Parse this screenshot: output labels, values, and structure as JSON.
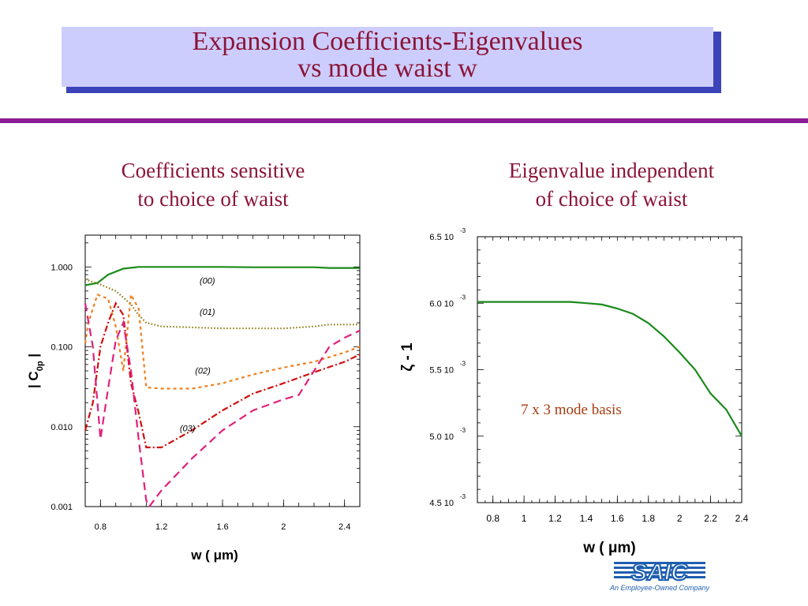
{
  "slide": {
    "title_line1": "Expansion Coefficients-Eigenvalues",
    "title_line2": "vs mode waist w",
    "left_heading_line1": "Coefficients sensitive",
    "left_heading_line2": "to choice of waist",
    "right_heading_line1": "Eigenvalue independent",
    "right_heading_line2": "of choice of waist",
    "logo_text": "SAIC",
    "logo_tagline": "An Employee-Owned Company"
  },
  "colors": {
    "title_text": "#8b1538",
    "title_box": "#cdcdfd",
    "title_shadow": "#3a44b8",
    "rule": "#8a1c96",
    "series_00": "#1a8a1a",
    "series_01": "#8a7a10",
    "series_02": "#f08020",
    "series_03a": "#d01010",
    "series_03b": "#e0207a",
    "eigen_line": "#1a8a1a"
  },
  "chart_data": [
    {
      "type": "line",
      "scale_y": "log",
      "xlabel": "w ( μm)",
      "ylabel_prefix": "| C",
      "ylabel_sub": "0p",
      "ylabel_suffix": "|",
      "xlim": [
        0.7,
        2.5
      ],
      "ylim": [
        0.001,
        2.5
      ],
      "xticks": [
        0.8,
        1.2,
        1.6,
        2,
        2.4
      ],
      "xtick_labels": [
        "0.8",
        "1.2",
        "1.6",
        "2",
        "2.4"
      ],
      "yticks": [
        0.001,
        0.01,
        0.1,
        1
      ],
      "ytick_labels": [
        "0.001",
        "0.010",
        "0.100",
        "1.000"
      ],
      "annotations": [
        {
          "text": "(00)",
          "x": 1.45,
          "y": 0.62
        },
        {
          "text": "(01)",
          "x": 1.45,
          "y": 0.25
        },
        {
          "text": "(02)",
          "x": 1.42,
          "y": 0.046
        },
        {
          "text": "(03)",
          "x": 1.32,
          "y": 0.0088
        }
      ],
      "series": [
        {
          "key": "00",
          "dash": "",
          "color_key": "series_00",
          "x": [
            0.7,
            0.78,
            0.85,
            0.95,
            1.05,
            1.2,
            1.4,
            1.6,
            1.8,
            2.0,
            2.2,
            2.3,
            2.5
          ],
          "y": [
            0.59,
            0.63,
            0.8,
            0.95,
            1.0,
            1.0,
            1.0,
            1.0,
            0.99,
            0.99,
            0.99,
            0.97,
            0.97
          ]
        },
        {
          "key": "01",
          "dash": "1.5,2.5",
          "color_key": "series_01",
          "x": [
            0.7,
            0.8,
            0.9,
            1.0,
            1.05,
            1.1,
            1.2,
            1.4,
            1.6,
            1.8,
            2.0,
            2.2,
            2.3,
            2.5
          ],
          "y": [
            0.7,
            0.6,
            0.5,
            0.34,
            0.25,
            0.2,
            0.18,
            0.175,
            0.17,
            0.17,
            0.17,
            0.18,
            0.19,
            0.19
          ]
        },
        {
          "key": "02",
          "dash": "4,4",
          "color_key": "series_02",
          "x": [
            0.7,
            0.72,
            0.78,
            0.85,
            0.9,
            0.95,
            1.0,
            1.05,
            1.1,
            1.2,
            1.4,
            1.6,
            1.8,
            2.0,
            2.2,
            2.4,
            2.5
          ],
          "y": [
            0.11,
            0.2,
            0.45,
            0.4,
            0.18,
            0.05,
            0.45,
            0.3,
            0.031,
            0.03,
            0.03,
            0.035,
            0.045,
            0.055,
            0.065,
            0.085,
            0.1
          ]
        },
        {
          "key": "03a",
          "dash": "8,3,2,3",
          "color_key": "series_03a",
          "x": [
            0.7,
            0.75,
            0.8,
            0.85,
            0.9,
            0.95,
            1.0,
            1.05,
            1.1,
            1.2,
            1.4,
            1.6,
            1.8,
            2.0,
            2.2,
            2.4,
            2.5
          ],
          "y": [
            0.009,
            0.02,
            0.1,
            0.2,
            0.35,
            0.25,
            0.035,
            0.015,
            0.0055,
            0.0055,
            0.009,
            0.016,
            0.026,
            0.035,
            0.048,
            0.065,
            0.08
          ]
        },
        {
          "key": "03b",
          "dash": "10,6",
          "color_key": "series_03b",
          "x": [
            0.7,
            0.75,
            0.8,
            0.85,
            0.9,
            0.95,
            1.0,
            1.05,
            1.1,
            1.12,
            1.2,
            1.4,
            1.6,
            1.8,
            2.0,
            2.1,
            2.2,
            2.3,
            2.4,
            2.5
          ],
          "y": [
            0.35,
            0.1,
            0.007,
            0.03,
            0.12,
            0.2,
            0.05,
            0.007,
            0.0012,
            0.001,
            0.0016,
            0.004,
            0.009,
            0.016,
            0.022,
            0.025,
            0.05,
            0.1,
            0.13,
            0.16
          ]
        }
      ]
    },
    {
      "type": "line",
      "xlabel": "w  (  μm)",
      "ylabel": "ζ - 1",
      "annotation": "7 x 3 mode basis",
      "xlim": [
        0.7,
        2.4
      ],
      "ylim": [
        0.0045,
        0.0065
      ],
      "xticks": [
        0.8,
        1.0,
        1.2,
        1.4,
        1.6,
        1.8,
        2.0,
        2.2,
        2.4
      ],
      "xtick_labels": [
        "0.8",
        "1",
        "1.2",
        "1.4",
        "1.6",
        "1.8",
        "2",
        "2.2",
        "2.4"
      ],
      "yticks": [
        0.0045,
        0.005,
        0.0055,
        0.006,
        0.0065
      ],
      "ytick_labels": [
        "4.5 10",
        "5.0 10",
        "5.5 10",
        "6.0 10",
        "6.5 10"
      ],
      "ytick_exponent": "-3",
      "series": [
        {
          "key": "eigen",
          "x": [
            0.7,
            0.8,
            1.0,
            1.2,
            1.3,
            1.4,
            1.5,
            1.6,
            1.7,
            1.8,
            1.9,
            2.0,
            2.1,
            2.2,
            2.3,
            2.4
          ],
          "y": [
            0.00601,
            0.00601,
            0.00601,
            0.00601,
            0.00601,
            0.006,
            0.00599,
            0.00596,
            0.00592,
            0.00585,
            0.00575,
            0.00563,
            0.0055,
            0.00532,
            0.0052,
            0.005
          ]
        }
      ]
    }
  ]
}
